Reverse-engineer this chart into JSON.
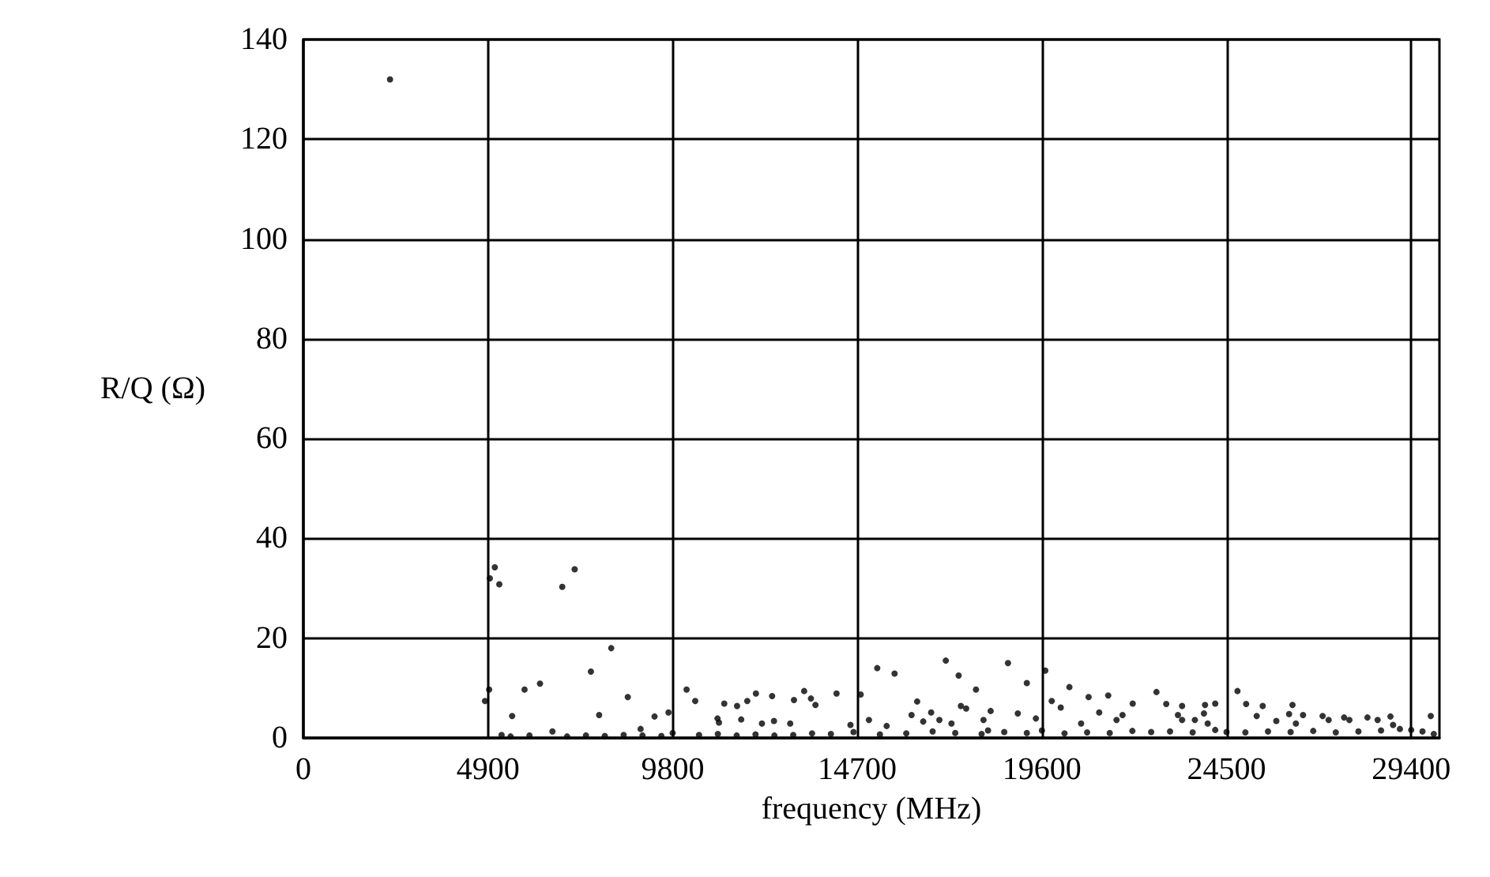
{
  "chart_data": {
    "type": "scatter",
    "xlabel": "frequency (MHz)",
    "ylabel": "R/Q (Ω)",
    "xlim": [
      0,
      30150
    ],
    "ylim": [
      0,
      140
    ],
    "xticks": [
      0,
      4900,
      9800,
      14700,
      19600,
      24500,
      29400
    ],
    "yticks": [
      0,
      20,
      40,
      60,
      80,
      100,
      120,
      140
    ],
    "grid": true,
    "marker": "circle",
    "color": "#000000",
    "x": [
      2300,
      5080,
      5200,
      4950,
      6870,
      7200,
      8170,
      7630,
      6280,
      5870,
      4930,
      4820,
      8610,
      7850,
      5540,
      9320,
      9690,
      8950,
      6610,
      5260,
      10170,
      10400,
      11170,
      11510,
      11780,
      12010,
      12440,
      13020,
      13290,
      13470,
      13590,
      14150,
      10990,
      11030,
      11620,
      12170,
      12490,
      12920,
      14520,
      14790,
      15230,
      15690,
      15010,
      15480,
      16290,
      16140,
      16450,
      16660,
      16880,
      17050,
      17390,
      17450,
      17590,
      17850,
      17200,
      18050,
      18240,
      18170,
      18700,
      19200,
      18960,
      19440,
      19690,
      19860,
      20330,
      20100,
      20840,
      21360,
      21120,
      21740,
      21580,
      22010,
      20640,
      22640,
      22900,
      23320,
      23210,
      23320,
      23660,
      23900,
      23930,
      24200,
      24000,
      24790,
      25020,
      25460,
      25300,
      25820,
      26250,
      26160,
      26530,
      26340,
      27050,
      27210,
      27620,
      27760,
      28240,
      28510,
      28850,
      28920,
      29920,
      5500,
      6000,
      7000,
      7500,
      8000,
      8500,
      9000,
      9500,
      9800,
      10500,
      11000,
      11500,
      12000,
      12500,
      13000,
      13500,
      14000,
      14600,
      15300,
      16000,
      16700,
      17300,
      18000,
      18600,
      19200,
      19600,
      20200,
      20800,
      21400,
      22000,
      22500,
      23000,
      23600,
      24200,
      24500,
      25000,
      25600,
      26200,
      26800,
      27400,
      28000,
      28600,
      29100,
      29400,
      29700,
      30000
    ],
    "values": [
      132,
      34.2,
      30.8,
      32,
      30.3,
      33.8,
      18,
      13.3,
      10.9,
      9.7,
      9.7,
      7.4,
      8.2,
      4.6,
      4.4,
      4.3,
      5.1,
      1.8,
      1.3,
      0.6,
      9.7,
      7.4,
      6.9,
      6.4,
      7.4,
      8.9,
      8.4,
      7.6,
      9.4,
      7.9,
      6.6,
      8.9,
      3.9,
      3.1,
      3.7,
      2.9,
      3.4,
      2.9,
      2.6,
      8.7,
      14,
      12.9,
      3.6,
      2.4,
      7.3,
      4.6,
      3.3,
      5.1,
      3.6,
      15.5,
      12.5,
      6.4,
      5.9,
      9.7,
      2.9,
      3.6,
      5.4,
      1.5,
      15,
      11,
      4.9,
      3.9,
      13.5,
      7.4,
      10.2,
      6.1,
      8.2,
      8.5,
      5.1,
      4.6,
      3.6,
      6.9,
      2.9,
      9.2,
      6.8,
      6.4,
      4.6,
      3.6,
      3.6,
      4.9,
      6.6,
      6.9,
      2.9,
      9.4,
      6.8,
      6.4,
      4.4,
      3.4,
      6.6,
      4.8,
      4.6,
      2.9,
      4.4,
      3.6,
      4.1,
      3.6,
      4.1,
      3.6,
      4.3,
      2.6,
      4.4,
      0.3,
      0.5,
      0.3,
      0.5,
      0.4,
      0.6,
      0.5,
      0.4,
      1,
      0.6,
      0.8,
      0.5,
      0.7,
      0.5,
      0.6,
      0.9,
      0.8,
      1.2,
      0.7,
      0.9,
      1.3,
      1,
      0.8,
      1.2,
      1,
      1.5,
      0.9,
      1.1,
      1,
      1.4,
      1.2,
      1.3,
      1.1,
      1.6,
      1.2,
      1.1,
      1.3,
      1.2,
      1.4,
      1.1,
      1.3,
      1.5,
      1.8,
      1.6,
      1.3,
      0.8
    ]
  }
}
